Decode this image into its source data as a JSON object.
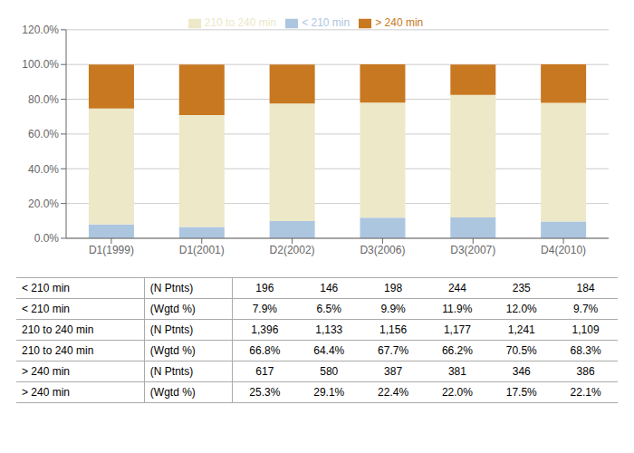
{
  "chart_data": {
    "type": "bar",
    "stacked": true,
    "categories": [
      "D1(1999)",
      "D1(2001)",
      "D2(2002)",
      "D3(2006)",
      "D3(2007)",
      "D4(2010)"
    ],
    "series": [
      {
        "name": "< 210 min",
        "color": "#adc6e0",
        "values": [
          7.9,
          6.5,
          9.9,
          11.9,
          12.0,
          9.7
        ]
      },
      {
        "name": "210 to 240 min",
        "color": "#ece8c8",
        "values": [
          66.8,
          64.4,
          67.7,
          66.2,
          70.5,
          68.3
        ]
      },
      {
        "name": "> 240 min",
        "color": "#c87820",
        "values": [
          25.3,
          29.1,
          22.4,
          22.0,
          17.5,
          22.1
        ]
      }
    ],
    "ylim": [
      0,
      120
    ],
    "yticks": [
      {
        "value": 0,
        "label": "0.0%"
      },
      {
        "value": 20,
        "label": "20.0%"
      },
      {
        "value": 40,
        "label": "40.0%"
      },
      {
        "value": 60,
        "label": "60.0%"
      },
      {
        "value": 80,
        "label": "80.0%"
      },
      {
        "value": 100,
        "label": "100.0%"
      },
      {
        "value": 120,
        "label": "120.0%"
      }
    ],
    "grid": true,
    "legend": "top",
    "table": {
      "row_labels": [
        [
          "< 210 min",
          "(N Ptnts)"
        ],
        [
          "< 210 min",
          "(Wgtd %)"
        ],
        [
          "210 to 240 min",
          "(N Ptnts)"
        ],
        [
          "210 to 240 min",
          "(Wgtd %)"
        ],
        [
          "> 240 min",
          "(N Ptnts)"
        ],
        [
          "> 240 min",
          "(Wgtd %)"
        ]
      ],
      "values": [
        [
          "196",
          "146",
          "198",
          "244",
          "235",
          "184"
        ],
        [
          "7.9%",
          "6.5%",
          "9.9%",
          "11.9%",
          "12.0%",
          "9.7%"
        ],
        [
          "1,396",
          "1,133",
          "1,156",
          "1,177",
          "1,241",
          "1,109"
        ],
        [
          "66.8%",
          "64.4%",
          "67.7%",
          "66.2%",
          "70.5%",
          "68.3%"
        ],
        [
          "617",
          "580",
          "387",
          "381",
          "346",
          "386"
        ],
        [
          "25.3%",
          "29.1%",
          "22.4%",
          "22.0%",
          "17.5%",
          "22.1%"
        ]
      ]
    }
  }
}
